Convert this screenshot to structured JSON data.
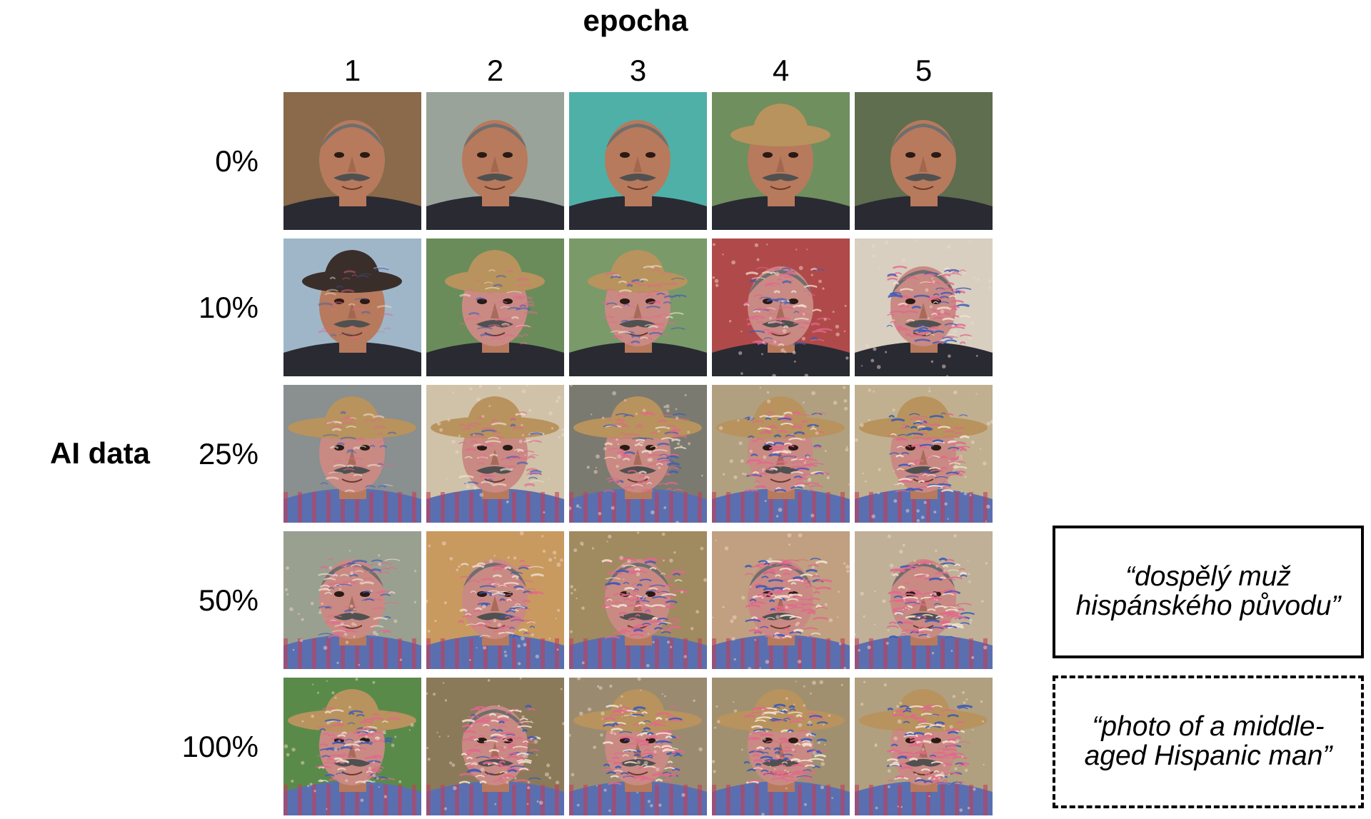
{
  "axes": {
    "column_title": "epocha",
    "row_title": "AI data"
  },
  "columns": [
    "1",
    "2",
    "3",
    "4",
    "5"
  ],
  "rows": [
    "0%",
    "10%",
    "25%",
    "50%",
    "100%"
  ],
  "captions": {
    "czech": "“dospělý muž hispánského původu”",
    "english": "“photo of a middle-aged Hispanic man”"
  },
  "palette": {
    "skin": "#b77a5c",
    "hat": "#b8935d",
    "suit": "#2a2a33",
    "mustache": "#505050",
    "hair": "#6e6e6e",
    "artifact_pink": "#e3678c",
    "artifact_blue": "#3b59b8"
  }
}
